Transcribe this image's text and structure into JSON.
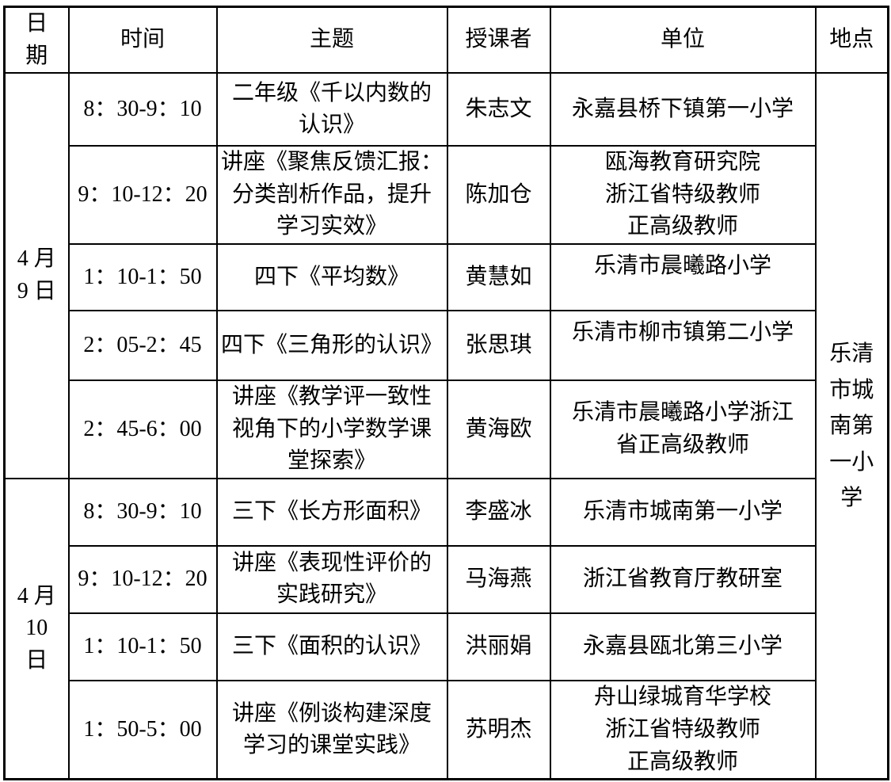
{
  "page": {
    "background": "#ffffff",
    "border_color": "#000000",
    "text_color": "#000000"
  },
  "table": {
    "headers": {
      "date": "日\n期",
      "time": "时间",
      "topic": "主题",
      "lecturer": "授课者",
      "organization": "单位",
      "venue": "地点"
    },
    "venue": "乐清\n市城\n南第\n一小\n学",
    "days": [
      {
        "date": "4 月\n9 日",
        "sessions": [
          {
            "time": "8：30-9：10",
            "topic": "二年级《千以内数的\n认识》",
            "lecturer": "朱志文",
            "organization": "永嘉县桥下镇第一小学"
          },
          {
            "time": "9：10-12：20",
            "topic": "讲座《聚焦反馈汇报：\n分类剖析作品，提升\n学习实效》",
            "lecturer": "陈加仓",
            "organization": "瓯海教育研究院\n浙江省特级教师\n正高级教师"
          },
          {
            "time": "1：10-1：50",
            "topic": "四下《平均数》",
            "lecturer": "黄慧如",
            "organization": "乐清市晨曦路小学"
          },
          {
            "time": "2：05-2：45",
            "topic": "四下《三角形的认识》",
            "lecturer": "张思琪",
            "organization": "乐清市柳市镇第二小学"
          },
          {
            "time": "2：45-6：00",
            "topic": "讲座《教学评一致性\n视角下的小学数学课\n堂探索》",
            "lecturer": "黄海欧",
            "organization": "乐清市晨曦路小学浙江\n省正高级教师"
          }
        ]
      },
      {
        "date": "4 月\n10\n日",
        "sessions": [
          {
            "time": "8：30-9：10",
            "topic": "三下《长方形面积》",
            "lecturer": "李盛冰",
            "organization": "乐清市城南第一小学"
          },
          {
            "time": "9：10-12：20",
            "topic": "讲座《表现性评价的\n实践研究》",
            "lecturer": "马海燕",
            "organization": "浙江省教育厅教研室"
          },
          {
            "time": "1：10-1：50",
            "topic": "三下《面积的认识》",
            "lecturer": "洪丽娟",
            "organization": "永嘉县瓯北第三小学"
          },
          {
            "time": "1：50-5：00",
            "topic": "讲座《例谈构建深度\n学习的课堂实践》",
            "lecturer": "苏明杰",
            "organization": "舟山绿城育华学校\n浙江省特级教师\n正高级教师"
          }
        ]
      }
    ]
  }
}
